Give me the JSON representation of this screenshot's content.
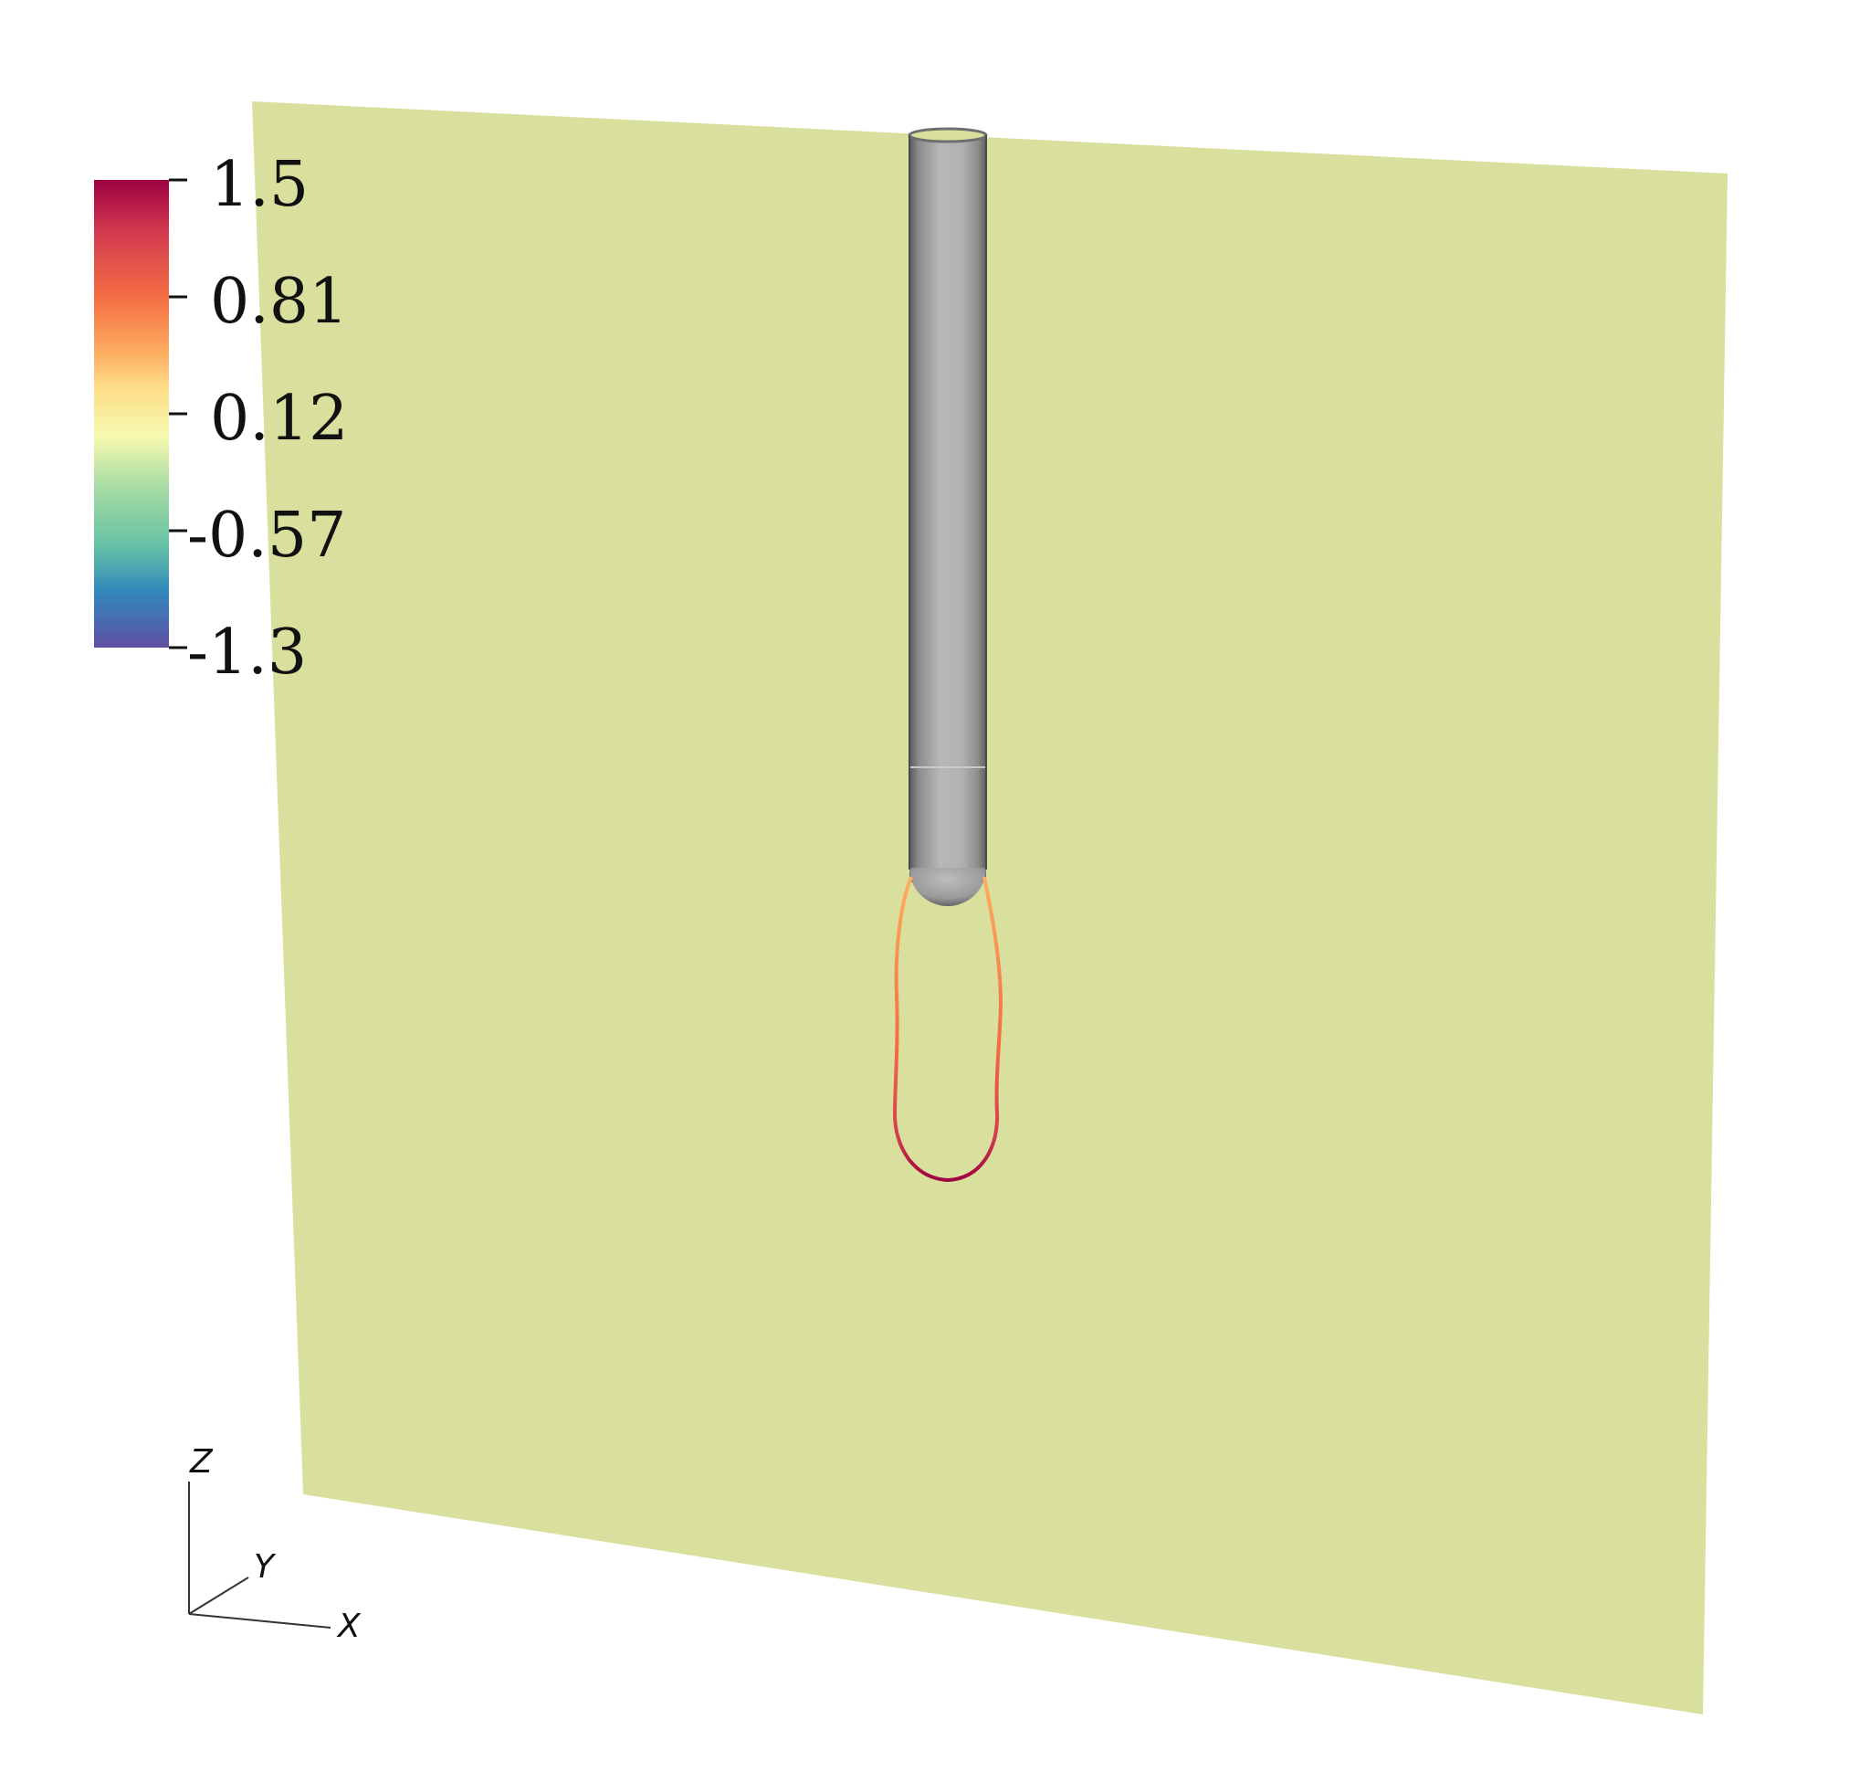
{
  "colorbar": {
    "labels": [
      "1.5",
      "0.81",
      "0.12",
      "-0.57",
      "-1.3"
    ],
    "colors": {
      "top": "#9e0142",
      "upper": "#f46d43",
      "mid_high": "#fee08b",
      "mid": "#f5f9b0",
      "mid_low": "#abdda4",
      "lower": "#3288bd",
      "bottom": "#5e4fa2"
    }
  },
  "scene": {
    "plane_color": "#d9df9c",
    "tube_color": "#b3b3b3",
    "contour_colors": [
      "#fdae61",
      "#f46d43",
      "#d53e4f",
      "#9e0142"
    ]
  },
  "axes": {
    "z": "Z",
    "y": "Y",
    "x": "X"
  }
}
